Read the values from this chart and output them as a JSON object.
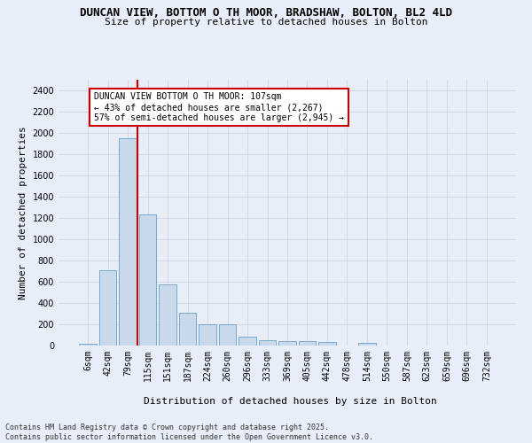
{
  "title": "DUNCAN VIEW, BOTTOM O TH MOOR, BRADSHAW, BOLTON, BL2 4LD",
  "subtitle": "Size of property relative to detached houses in Bolton",
  "xlabel": "Distribution of detached houses by size in Bolton",
  "ylabel": "Number of detached properties",
  "categories": [
    "6sqm",
    "42sqm",
    "79sqm",
    "115sqm",
    "151sqm",
    "187sqm",
    "224sqm",
    "260sqm",
    "296sqm",
    "333sqm",
    "369sqm",
    "405sqm",
    "442sqm",
    "478sqm",
    "514sqm",
    "550sqm",
    "587sqm",
    "623sqm",
    "659sqm",
    "696sqm",
    "732sqm"
  ],
  "values": [
    15,
    710,
    1950,
    1235,
    575,
    305,
    200,
    200,
    85,
    50,
    40,
    40,
    35,
    0,
    25,
    0,
    0,
    0,
    0,
    0,
    0
  ],
  "bar_color": "#c9d9ec",
  "bar_edge_color": "#6a9ec5",
  "grid_color": "#d0d8e8",
  "bg_color": "#e8eef8",
  "vline_color": "#cc0000",
  "vline_x_index": 2.5,
  "annotation_text": "DUNCAN VIEW BOTTOM O TH MOOR: 107sqm\n← 43% of detached houses are smaller (2,267)\n57% of semi-detached houses are larger (2,945) →",
  "annotation_box_color": "#cc0000",
  "ylim": [
    0,
    2500
  ],
  "yticks": [
    0,
    200,
    400,
    600,
    800,
    1000,
    1200,
    1400,
    1600,
    1800,
    2000,
    2200,
    2400
  ],
  "footer": "Contains HM Land Registry data © Crown copyright and database right 2025.\nContains public sector information licensed under the Open Government Licence v3.0.",
  "title_fontsize": 9,
  "subtitle_fontsize": 8,
  "axis_label_fontsize": 8,
  "tick_fontsize": 7,
  "annotation_fontsize": 7,
  "footer_fontsize": 6
}
